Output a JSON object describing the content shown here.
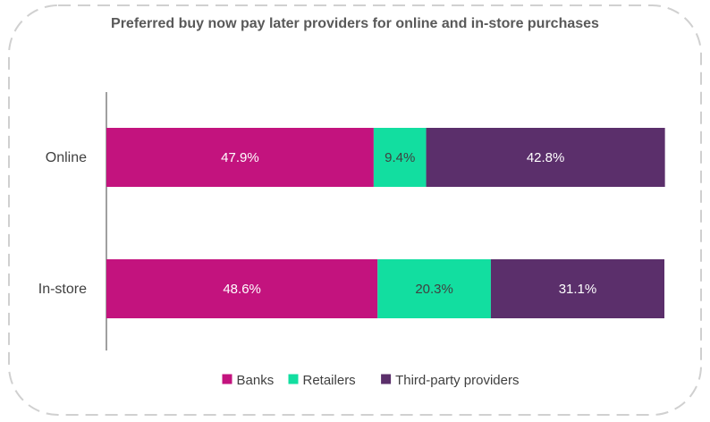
{
  "chart_data": {
    "type": "bar",
    "orientation": "horizontal",
    "stacked": true,
    "title": "Preferred buy now pay later providers for online and in-store purchases",
    "categories": [
      "Online",
      "In-store"
    ],
    "series": [
      {
        "name": "Banks",
        "color": "#c3137e",
        "values": [
          47.9,
          48.6
        ],
        "labels": [
          "47.9%",
          "48.6%"
        ]
      },
      {
        "name": "Retailers",
        "color": "#12dea0",
        "values": [
          9.4,
          20.3
        ],
        "labels": [
          "9.4%",
          "20.3%"
        ]
      },
      {
        "name": "Third-party providers",
        "color": "#5b2f6b",
        "values": [
          42.8,
          31.1
        ],
        "labels": [
          "42.8%",
          "31.1%"
        ]
      }
    ],
    "xlim": [
      0,
      100
    ],
    "grid": false,
    "legend_position": "bottom"
  }
}
